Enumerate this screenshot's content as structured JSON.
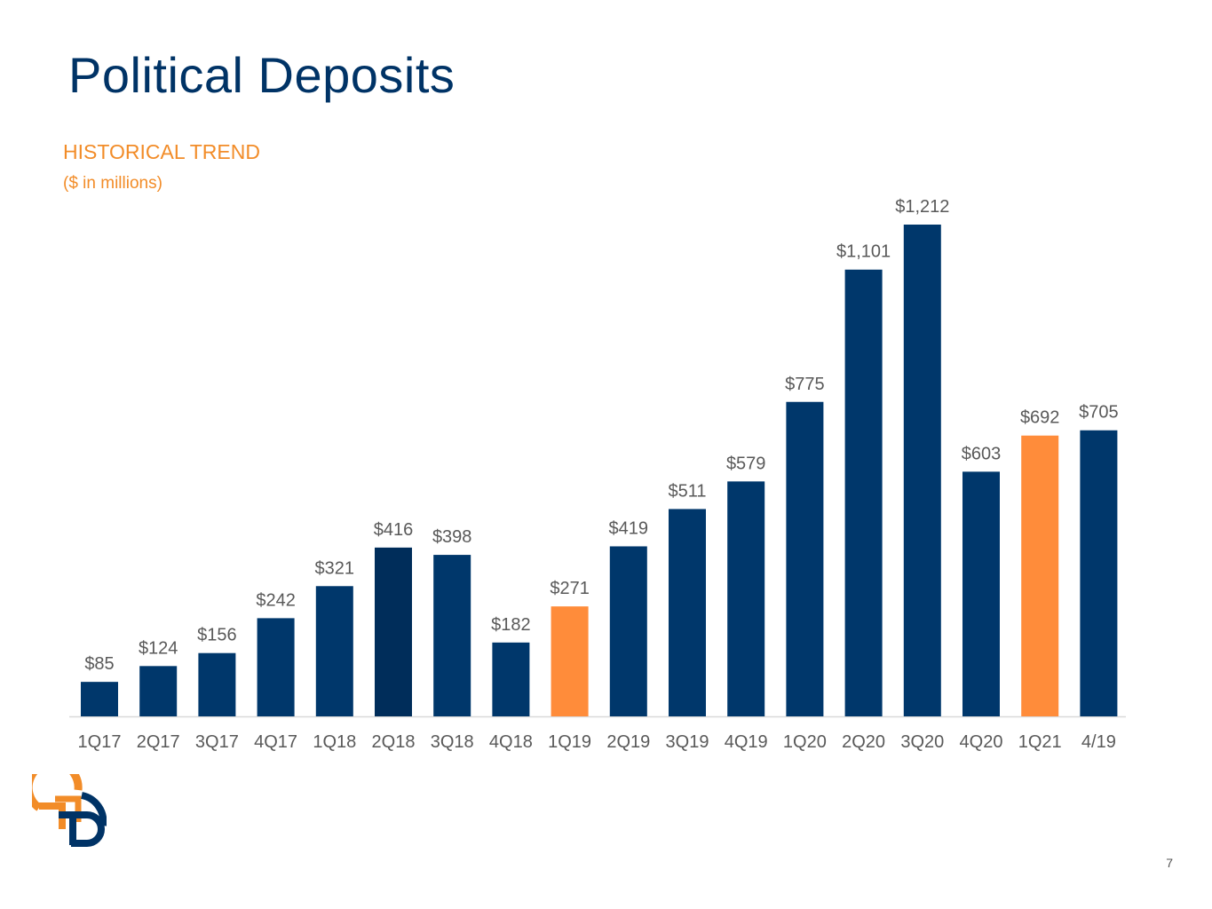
{
  "slide": {
    "title": "Political Deposits",
    "subtitle": "HISTORICAL TREND",
    "unit_note": "($ in millions)",
    "page_number": "7",
    "logo_icon": "bank-logo-icon"
  },
  "colors": {
    "title": "#003366",
    "accent": "#f28c28",
    "bar_primary": "#00376b",
    "bar_dark": "#002d5a",
    "bar_highlight": "#ff8c3a",
    "label": "#595959"
  },
  "chart_data": {
    "type": "bar",
    "title": "HISTORICAL TREND",
    "ylabel": "($ in millions)",
    "categories": [
      "1Q17",
      "2Q17",
      "3Q17",
      "4Q17",
      "1Q18",
      "2Q18",
      "3Q18",
      "4Q18",
      "1Q19",
      "2Q19",
      "3Q19",
      "4Q19",
      "1Q20",
      "2Q20",
      "3Q20",
      "4Q20",
      "1Q21",
      "4/19"
    ],
    "values": [
      85,
      124,
      156,
      242,
      321,
      416,
      398,
      182,
      271,
      419,
      511,
      579,
      775,
      1101,
      1212,
      603,
      692,
      705
    ],
    "data_labels": [
      "$85",
      "$124",
      "$156",
      "$242",
      "$321",
      "$416",
      "$398",
      "$182",
      "$271",
      "$419",
      "$511",
      "$579",
      "$775",
      "$1,101",
      "$1,212",
      "$603",
      "$692",
      "$705"
    ],
    "highlighted": [
      "1Q19",
      "1Q21"
    ],
    "ylim": [
      0,
      1212
    ],
    "grid": false,
    "legend": "none"
  }
}
